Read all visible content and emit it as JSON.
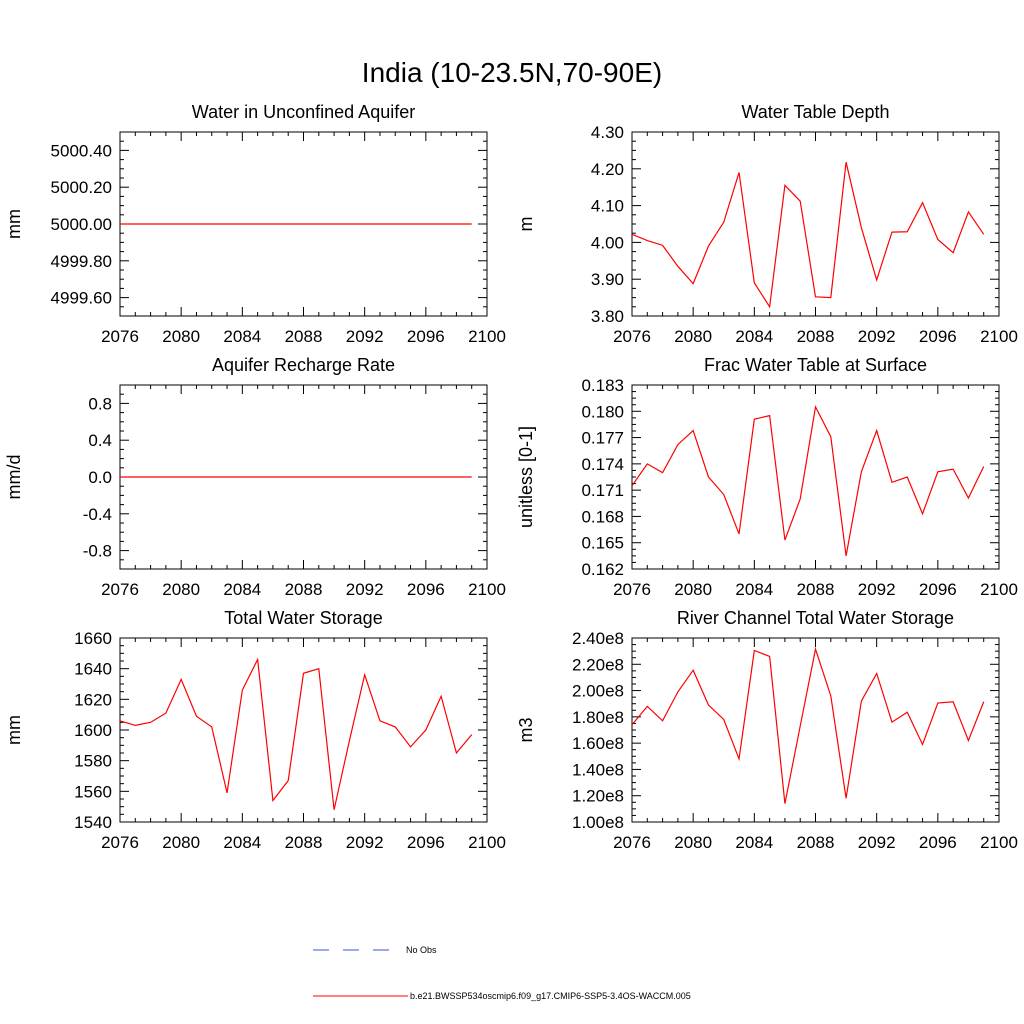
{
  "title": "India (10-23.5N,70-90E)",
  "colors": {
    "model": "#ff0000",
    "obs": "#3355cc"
  },
  "legend": {
    "items": [
      {
        "label": "No Obs",
        "style": "dashed",
        "color": "#3355cc"
      },
      {
        "label": "b.e21.BWSSP534oscmip6.f09_g17.CMIP6-SSP5-3.4OS-WACCM.005",
        "style": "solid",
        "color": "#ff0000"
      }
    ]
  },
  "chart_data": [
    {
      "type": "line",
      "title": "Water in Unconfined Aquifer",
      "ylabel": "mm",
      "xlim": [
        2076,
        2100
      ],
      "ylim": [
        4999.5,
        5000.5
      ],
      "xticks": [
        2076,
        2080,
        2084,
        2088,
        2092,
        2096,
        2100
      ],
      "yticks": [
        4999.6,
        4999.8,
        5000.0,
        5000.2,
        5000.4
      ],
      "yticklabels": [
        "4999.60",
        "4999.80",
        "5000.00",
        "5000.20",
        "5000.40"
      ],
      "x": [
        2076,
        2077,
        2078,
        2079,
        2080,
        2081,
        2082,
        2083,
        2084,
        2085,
        2086,
        2087,
        2088,
        2089,
        2090,
        2091,
        2092,
        2093,
        2094,
        2095,
        2096,
        2097,
        2098,
        2099
      ],
      "values": [
        5000.0,
        5000.0,
        5000.0,
        5000.0,
        5000.0,
        5000.0,
        5000.0,
        5000.0,
        5000.0,
        5000.0,
        5000.0,
        5000.0,
        5000.0,
        5000.0,
        5000.0,
        5000.0,
        5000.0,
        5000.0,
        5000.0,
        5000.0,
        5000.0,
        5000.0,
        5000.0,
        5000.0
      ]
    },
    {
      "type": "line",
      "title": "Water Table Depth",
      "ylabel": "m",
      "xlim": [
        2076,
        2100
      ],
      "ylim": [
        3.8,
        4.3
      ],
      "xticks": [
        2076,
        2080,
        2084,
        2088,
        2092,
        2096,
        2100
      ],
      "yticks": [
        3.8,
        3.9,
        4.0,
        4.1,
        4.2,
        4.3
      ],
      "yticklabels": [
        "3.80",
        "3.90",
        "4.00",
        "4.10",
        "4.20",
        "4.30"
      ],
      "x": [
        2076,
        2077,
        2078,
        2079,
        2080,
        2081,
        2082,
        2083,
        2084,
        2085,
        2086,
        2087,
        2088,
        2089,
        2090,
        2091,
        2092,
        2093,
        2094,
        2095,
        2096,
        2097,
        2098,
        2099
      ],
      "values": [
        4.022,
        4.005,
        3.992,
        3.935,
        3.888,
        3.99,
        4.055,
        4.19,
        3.89,
        3.825,
        4.155,
        4.112,
        3.852,
        3.85,
        4.218,
        4.04,
        3.898,
        4.028,
        4.029,
        4.108,
        4.008,
        3.972,
        4.083,
        4.022
      ]
    },
    {
      "type": "line",
      "title": "Aquifer Recharge Rate",
      "ylabel": "mm/d",
      "xlim": [
        2076,
        2100
      ],
      "ylim": [
        -1.0,
        1.0
      ],
      "xticks": [
        2076,
        2080,
        2084,
        2088,
        2092,
        2096,
        2100
      ],
      "yticks": [
        -0.8,
        -0.4,
        0.0,
        0.4,
        0.8
      ],
      "yticklabels": [
        "-0.8",
        "-0.4",
        "0.0",
        "0.4",
        "0.8"
      ],
      "x": [
        2076,
        2077,
        2078,
        2079,
        2080,
        2081,
        2082,
        2083,
        2084,
        2085,
        2086,
        2087,
        2088,
        2089,
        2090,
        2091,
        2092,
        2093,
        2094,
        2095,
        2096,
        2097,
        2098,
        2099
      ],
      "values": [
        0.0,
        0.0,
        0.0,
        0.0,
        0.0,
        0.0,
        0.0,
        0.0,
        0.0,
        0.0,
        0.0,
        0.0,
        0.0,
        0.0,
        0.0,
        0.0,
        0.0,
        0.0,
        0.0,
        0.0,
        0.0,
        0.0,
        0.0,
        0.0
      ]
    },
    {
      "type": "line",
      "title": "Frac Water Table at Surface",
      "ylabel": "unitless [0-1]",
      "xlim": [
        2076,
        2100
      ],
      "ylim": [
        0.162,
        0.183
      ],
      "xticks": [
        2076,
        2080,
        2084,
        2088,
        2092,
        2096,
        2100
      ],
      "yticks": [
        0.162,
        0.165,
        0.168,
        0.171,
        0.174,
        0.177,
        0.18,
        0.183
      ],
      "yticklabels": [
        "0.162",
        "0.165",
        "0.168",
        "0.171",
        "0.174",
        "0.177",
        "0.180",
        "0.183"
      ],
      "x": [
        2076,
        2077,
        2078,
        2079,
        2080,
        2081,
        2082,
        2083,
        2084,
        2085,
        2086,
        2087,
        2088,
        2089,
        2090,
        2091,
        2092,
        2093,
        2094,
        2095,
        2096,
        2097,
        2098,
        2099
      ],
      "values": [
        0.1715,
        0.174,
        0.173,
        0.1762,
        0.1778,
        0.1725,
        0.1705,
        0.166,
        0.1791,
        0.1795,
        0.1653,
        0.17,
        0.1805,
        0.1771,
        0.1635,
        0.1731,
        0.1778,
        0.1719,
        0.1725,
        0.1683,
        0.1731,
        0.1734,
        0.1701,
        0.1737
      ]
    },
    {
      "type": "line",
      "title": "Total Water Storage",
      "ylabel": "mm",
      "xlim": [
        2076,
        2100
      ],
      "ylim": [
        1540,
        1660
      ],
      "xticks": [
        2076,
        2080,
        2084,
        2088,
        2092,
        2096,
        2100
      ],
      "yticks": [
        1540,
        1560,
        1580,
        1600,
        1620,
        1640,
        1660
      ],
      "yticklabels": [
        "1540",
        "1560",
        "1580",
        "1600",
        "1620",
        "1640",
        "1660"
      ],
      "x": [
        2076,
        2077,
        2078,
        2079,
        2080,
        2081,
        2082,
        2083,
        2084,
        2085,
        2086,
        2087,
        2088,
        2089,
        2090,
        2091,
        2092,
        2093,
        2094,
        2095,
        2096,
        2097,
        2098,
        2099
      ],
      "values": [
        1606,
        1603,
        1605,
        1611,
        1633,
        1609,
        1602,
        1559,
        1626,
        1646,
        1554,
        1567,
        1637,
        1640,
        1548,
        1593,
        1636,
        1606,
        1602,
        1589,
        1600,
        1622,
        1585,
        1597
      ]
    },
    {
      "type": "line",
      "title": "River Channel Total Water Storage",
      "ylabel": "m3",
      "xlim": [
        2076,
        2100
      ],
      "ylim": [
        100000000.0,
        240000000.0
      ],
      "xticks": [
        2076,
        2080,
        2084,
        2088,
        2092,
        2096,
        2100
      ],
      "yticks": [
        100000000.0,
        120000000.0,
        140000000.0,
        160000000.0,
        180000000.0,
        200000000.0,
        220000000.0,
        240000000.0
      ],
      "yticklabels": [
        "1.00e8",
        "1.20e8",
        "1.40e8",
        "1.60e8",
        "1.80e8",
        "2.00e8",
        "2.20e8",
        "2.40e8"
      ],
      "x": [
        2076,
        2077,
        2078,
        2079,
        2080,
        2081,
        2082,
        2083,
        2084,
        2085,
        2086,
        2087,
        2088,
        2089,
        2090,
        2091,
        2092,
        2093,
        2094,
        2095,
        2096,
        2097,
        2098,
        2099
      ],
      "values": [
        174000000.0,
        188000000.0,
        177000000.0,
        199000000.0,
        215500000.0,
        189000000.0,
        178000000.0,
        148000000.0,
        230500000.0,
        226000000.0,
        114000000.0,
        173000000.0,
        231500000.0,
        196000000.0,
        118000000.0,
        192000000.0,
        213000000.0,
        176000000.0,
        183500000.0,
        159000000.0,
        190500000.0,
        191500000.0,
        162000000.0,
        191500000.0
      ]
    }
  ]
}
